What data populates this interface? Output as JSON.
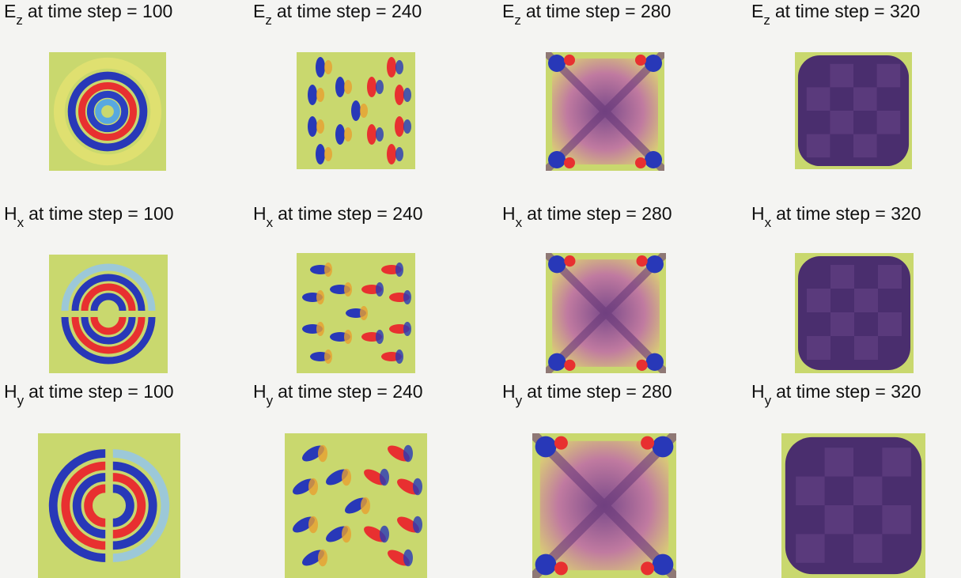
{
  "panels": [
    {
      "field": "E",
      "subscript": "z",
      "caption": "at time step = 100"
    },
    {
      "field": "E",
      "subscript": "z",
      "caption": "at time step = 240"
    },
    {
      "field": "E",
      "subscript": "z",
      "caption": "at time step = 280"
    },
    {
      "field": "E",
      "subscript": "z",
      "caption": "at time step = 320"
    },
    {
      "field": "H",
      "subscript": "x",
      "caption": "at time step = 100"
    },
    {
      "field": "H",
      "subscript": "x",
      "caption": "at time step = 240"
    },
    {
      "field": "H",
      "subscript": "x",
      "caption": "at time step = 280"
    },
    {
      "field": "H",
      "subscript": "x",
      "caption": "at time step = 320"
    },
    {
      "field": "H",
      "subscript": "y",
      "caption": "at time step = 100"
    },
    {
      "field": "H",
      "subscript": "y",
      "caption": "at time step = 240"
    },
    {
      "field": "H",
      "subscript": "y",
      "caption": "at time step = 280"
    },
    {
      "field": "H",
      "subscript": "y",
      "caption": "at time step = 320"
    }
  ]
}
